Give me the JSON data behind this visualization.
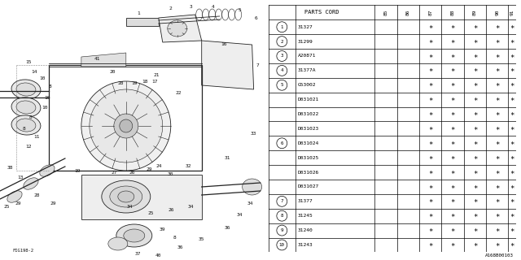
{
  "diagram_code": "A168B00103",
  "fig_label": "FIG198-2",
  "col_years": [
    "85",
    "86",
    "87",
    "88",
    "89",
    "90",
    "91"
  ],
  "rows": [
    {
      "num": "1",
      "circle": true,
      "part": "31327",
      "marks": [
        " ",
        " ",
        "*",
        "*",
        "*",
        "*",
        "*"
      ]
    },
    {
      "num": "2",
      "circle": true,
      "part": "31299",
      "marks": [
        " ",
        " ",
        "*",
        "*",
        "*",
        "*",
        "*"
      ]
    },
    {
      "num": "3",
      "circle": true,
      "part": "A20871",
      "marks": [
        " ",
        " ",
        "*",
        "*",
        "*",
        "*",
        "*"
      ]
    },
    {
      "num": "4",
      "circle": true,
      "part": "31377A",
      "marks": [
        " ",
        " ",
        "*",
        "*",
        "*",
        "*",
        "*"
      ]
    },
    {
      "num": "5",
      "circle": true,
      "part": "G53002",
      "marks": [
        " ",
        " ",
        "*",
        "*",
        "*",
        "*",
        "*"
      ]
    },
    {
      "num": "",
      "circle": false,
      "part": "D031021",
      "marks": [
        " ",
        " ",
        "*",
        "*",
        "*",
        "*",
        "*"
      ]
    },
    {
      "num": "",
      "circle": false,
      "part": "D031022",
      "marks": [
        " ",
        " ",
        "*",
        "*",
        "*",
        "*",
        "*"
      ]
    },
    {
      "num": "",
      "circle": false,
      "part": "D031023",
      "marks": [
        " ",
        " ",
        "*",
        "*",
        "*",
        "*",
        "*"
      ]
    },
    {
      "num": "6",
      "circle": true,
      "part": "D031024",
      "marks": [
        " ",
        " ",
        "*",
        "*",
        "*",
        "*",
        "*"
      ]
    },
    {
      "num": "",
      "circle": false,
      "part": "D031025",
      "marks": [
        " ",
        " ",
        "*",
        "*",
        "*",
        "*",
        "*"
      ]
    },
    {
      "num": "",
      "circle": false,
      "part": "D031026",
      "marks": [
        " ",
        " ",
        "*",
        "*",
        "*",
        "*",
        "*"
      ]
    },
    {
      "num": "",
      "circle": false,
      "part": "D031027",
      "marks": [
        " ",
        " ",
        "*",
        "*",
        "*",
        "*",
        "*"
      ]
    },
    {
      "num": "7",
      "circle": true,
      "part": "31377",
      "marks": [
        " ",
        " ",
        "*",
        "*",
        "*",
        "*",
        "*"
      ]
    },
    {
      "num": "8",
      "circle": true,
      "part": "31245",
      "marks": [
        " ",
        " ",
        "*",
        "*",
        "*",
        "*",
        "*"
      ]
    },
    {
      "num": "9",
      "circle": true,
      "part": "31240",
      "marks": [
        " ",
        " ",
        "*",
        "*",
        "*",
        "*",
        "*"
      ]
    },
    {
      "num": "10",
      "circle": true,
      "part": "31243",
      "marks": [
        " ",
        " ",
        "*",
        "*",
        "*",
        "*",
        "*"
      ]
    }
  ],
  "bg_color": "#ffffff"
}
